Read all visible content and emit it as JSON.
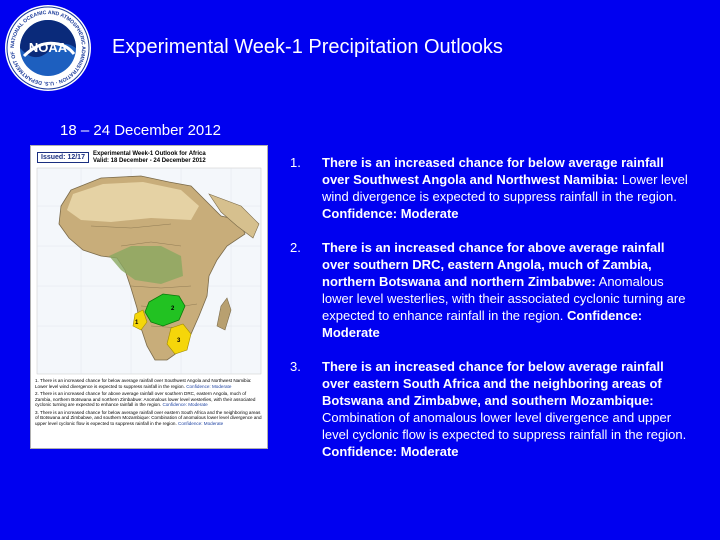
{
  "header": {
    "logo_icon": "noaa-logo-icon",
    "logo_center_text": "NOAA",
    "logo_ring_text": "NATIONAL OCEANIC AND ATMOSPHERIC ADMINISTRATION · U.S. DEPARTMENT OF COMMERCE",
    "title": "Experimental Week-1 Precipitation Outlooks",
    "date": "18 – 24 December 2012"
  },
  "map": {
    "issued": "Issued: 12/17",
    "title_line1": "Experimental Week-1 Outlook for Africa",
    "title_line2": "Valid: 18 December - 24 December 2012",
    "region_labels": [
      "1",
      "2",
      "3"
    ],
    "legend": [
      {
        "head": "1. There is an increased chance for below average rainfall over Southwest Angola and Northwest Namibia:",
        "body": "Lower level wind divergence is expected to suppress rainfall in the region.",
        "conf": "Confidence: Moderate"
      },
      {
        "head": "2. There is an increased chance for above average rainfall over southern DRC, eastern Angola, much of Zambia, northern Botswana and northern Zimbabwe:",
        "body": "Anomalous lower level westerlies, with their associated cyclonic turning are expected to enhance rainfall in the region.",
        "conf": "Confidence: Moderate"
      },
      {
        "head": "3. There is an increased chance for below average rainfall over eastern South Africa and the neighboring areas of Botswana and Zimbabwe, and southern Mozambique:",
        "body": "Combination of anomalous lower level divergence and upper level cyclonic flow is expected to suppress rainfall in the region.",
        "conf": "Confidence: Moderate"
      }
    ]
  },
  "items": [
    {
      "num": "1.",
      "head": "There is an increased chance for below average rainfall over Southwest Angola and Northwest Namibia:",
      "body": " Lower level wind divergence is expected to suppress rainfall in the region. ",
      "conf": "Confidence: Moderate"
    },
    {
      "num": "2.",
      "head": "There is an increased chance for above average rainfall over southern DRC, eastern Angola, much of Zambia, northern Botswana and northern Zimbabwe:",
      "body": " Anomalous lower level westerlies, with their associated cyclonic turning are expected to enhance rainfall in the region. ",
      "conf": "Confidence: Moderate"
    },
    {
      "num": "3.",
      "head": "There is an increased chance for below average rainfall over eastern South Africa and the neighboring areas of Botswana and Zimbabwe, and southern Mozambique:",
      "body": " Combination of anomalous lower level divergence and upper level cyclonic flow is expected to suppress rainfall in the region. ",
      "conf": "Confidence: Moderate"
    }
  ],
  "colors": {
    "background": "#0000f0",
    "below_average": "#f5d60a",
    "above_average": "#22c222"
  }
}
